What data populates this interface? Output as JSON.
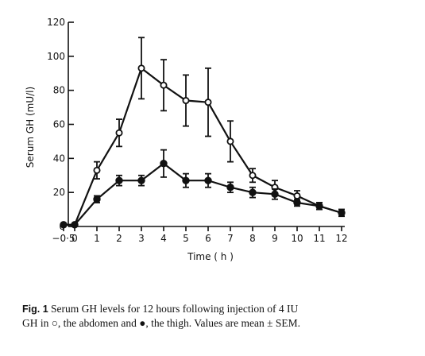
{
  "chart_data": {
    "type": "line",
    "xlabel": "Time ( h )",
    "ylabel": "Serum GH (mU/l)",
    "xlim": [
      -0.5,
      12
    ],
    "ylim": [
      0,
      120
    ],
    "x_ticks": [
      -0.5,
      0,
      1,
      2,
      3,
      4,
      5,
      6,
      7,
      8,
      9,
      10,
      11,
      12
    ],
    "x_tick_labels": [
      "−0·5",
      "0",
      "1",
      "2",
      "3",
      "4",
      "5",
      "6",
      "7",
      "8",
      "9",
      "10",
      "11",
      "12"
    ],
    "y_ticks": [
      0,
      20,
      40,
      60,
      80,
      100,
      120
    ],
    "y_tick_labels": [
      "0",
      "20",
      "40",
      "60",
      "80",
      "100",
      "120"
    ],
    "grid": false,
    "series": [
      {
        "marker": "open-circle",
        "x": [
          -0.5,
          0,
          1,
          2,
          3,
          4,
          5,
          6,
          7,
          8,
          9,
          10,
          11,
          12
        ],
        "y": [
          1,
          1,
          33,
          55,
          93,
          83,
          74,
          73,
          50,
          30,
          23,
          18,
          12,
          8
        ],
        "err": [
          1,
          1,
          5,
          8,
          18,
          15,
          15,
          20,
          12,
          4,
          4,
          3,
          2,
          2
        ]
      },
      {
        "marker": "filled-circle",
        "x": [
          -0.5,
          0,
          1,
          2,
          3,
          4,
          5,
          6,
          7,
          8,
          9,
          10,
          11,
          12
        ],
        "y": [
          1,
          1,
          16,
          27,
          27,
          37,
          27,
          27,
          23,
          20,
          19,
          14,
          12,
          8
        ],
        "err": [
          1,
          1,
          2,
          3,
          3,
          8,
          4,
          4,
          3,
          3,
          3,
          2,
          2,
          2
        ]
      }
    ]
  },
  "caption": {
    "label": "Fig. 1",
    "line1": " Serum GH levels for 12 hours following injection of 4 IU",
    "line2": "GH in ○, the abdomen and ●, the thigh. Values are mean ± SEM."
  }
}
